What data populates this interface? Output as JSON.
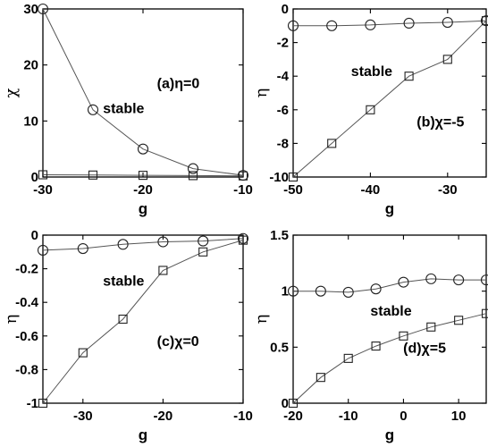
{
  "chart_data": [
    {
      "type": "line",
      "panel_label": "(a)η=0",
      "annotation": "stable",
      "xlabel": "g",
      "ylabel": "χ",
      "xlim": [
        -30,
        -10
      ],
      "ylim": [
        0,
        30
      ],
      "xticks": [
        -30,
        -20,
        -10
      ],
      "yticks": [
        0,
        10,
        20,
        30
      ],
      "series": [
        {
          "marker": "circle",
          "x": [
            -30,
            -25,
            -20,
            -15,
            -10
          ],
          "y": [
            30,
            12,
            5,
            1.5,
            0.3
          ]
        },
        {
          "marker": "square",
          "x": [
            -30,
            -25,
            -20,
            -15,
            -10
          ],
          "y": [
            0.4,
            0.35,
            0.3,
            0.25,
            0.2
          ]
        }
      ]
    },
    {
      "type": "line",
      "panel_label": "(b)χ=-5",
      "annotation": "stable",
      "xlabel": "g",
      "ylabel": "η",
      "xlim": [
        -50,
        -25
      ],
      "ylim": [
        -10,
        0
      ],
      "xticks": [
        -50,
        -40,
        -30
      ],
      "yticks": [
        -10,
        -8,
        -6,
        -4,
        -2,
        0
      ],
      "series": [
        {
          "marker": "circle",
          "x": [
            -50,
            -45,
            -40,
            -35,
            -30,
            -25
          ],
          "y": [
            -1.0,
            -1.0,
            -0.95,
            -0.85,
            -0.8,
            -0.7
          ]
        },
        {
          "marker": "square",
          "x": [
            -50,
            -45,
            -40,
            -35,
            -30,
            -25
          ],
          "y": [
            -10,
            -8,
            -6,
            -4,
            -3,
            -0.7
          ]
        }
      ]
    },
    {
      "type": "line",
      "panel_label": "(c)χ=0",
      "annotation": "stable",
      "xlabel": "g",
      "ylabel": "η",
      "xlim": [
        -35,
        -10
      ],
      "ylim": [
        -1,
        0
      ],
      "xticks": [
        -30,
        -20,
        -10
      ],
      "yticks": [
        -1,
        -0.8,
        -0.6,
        -0.4,
        -0.2,
        0
      ],
      "ytick_labels": [
        "-1",
        "-0.8",
        "-0.6",
        "-0.4",
        "-0.2",
        "0"
      ],
      "series": [
        {
          "marker": "circle",
          "x": [
            -35,
            -30,
            -25,
            -20,
            -15,
            -10
          ],
          "y": [
            -0.09,
            -0.08,
            -0.055,
            -0.04,
            -0.035,
            -0.02
          ]
        },
        {
          "marker": "square",
          "x": [
            -35,
            -30,
            -25,
            -20,
            -15,
            -10
          ],
          "y": [
            -1.0,
            -0.7,
            -0.5,
            -0.21,
            -0.1,
            -0.03
          ]
        }
      ]
    },
    {
      "type": "line",
      "panel_label": "(d)χ=5",
      "annotation": "stable",
      "xlabel": "g",
      "ylabel": "η",
      "xlim": [
        -20,
        15
      ],
      "ylim": [
        0,
        1.5
      ],
      "xticks": [
        -20,
        -10,
        0,
        10
      ],
      "yticks": [
        0,
        0.5,
        1,
        1.5
      ],
      "ytick_labels": [
        "0",
        "0.5",
        "1",
        "1.5"
      ],
      "series": [
        {
          "marker": "circle",
          "x": [
            -20,
            -15,
            -10,
            -5,
            0,
            5,
            10,
            15
          ],
          "y": [
            1.0,
            1.0,
            0.99,
            1.02,
            1.08,
            1.11,
            1.1,
            1.1
          ]
        },
        {
          "marker": "square",
          "x": [
            -20,
            -15,
            -10,
            -5,
            0,
            5,
            10,
            15
          ],
          "y": [
            0.0,
            0.23,
            0.4,
            0.51,
            0.6,
            0.68,
            0.74,
            0.8
          ]
        }
      ]
    }
  ]
}
